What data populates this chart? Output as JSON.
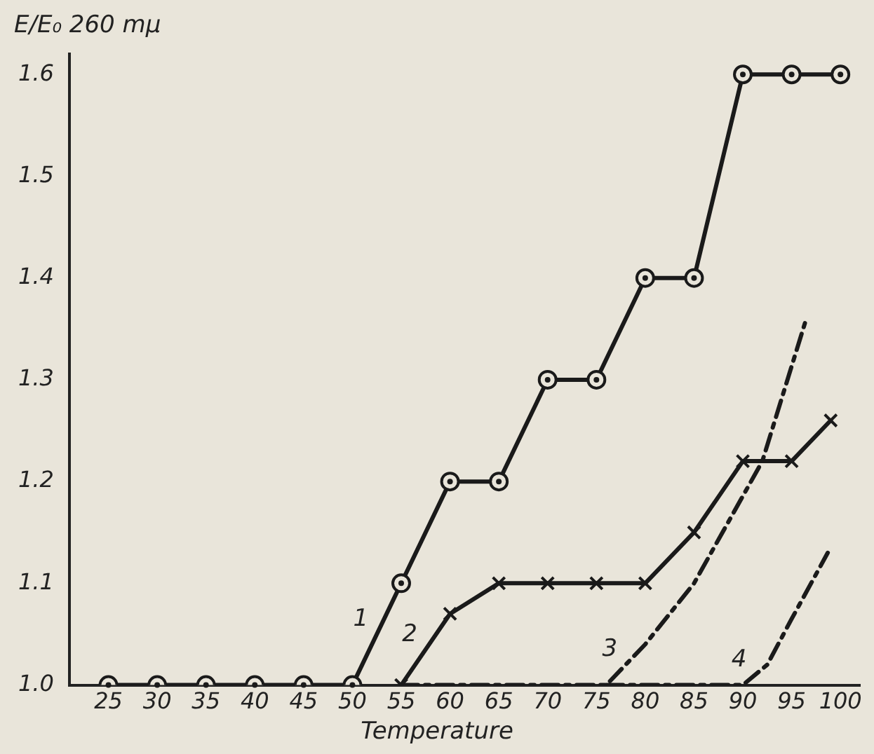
{
  "chart_data": {
    "type": "line",
    "xlabel": "Temperature",
    "ylabel": "E/E₀ 260 mμ",
    "xlim": [
      21,
      102
    ],
    "ylim": [
      1.0,
      1.62
    ],
    "xticks": [
      25,
      30,
      35,
      40,
      45,
      50,
      55,
      60,
      65,
      70,
      75,
      80,
      85,
      90,
      95,
      100
    ],
    "yticks": [
      {
        "value": 1.0,
        "label": "1.0"
      },
      1.1,
      1.2,
      1.3,
      1.4,
      1.5,
      1.6
    ],
    "grid": false,
    "legend": false,
    "series": [
      {
        "name": "1",
        "color": "#1a1a1a",
        "marker": "circle",
        "line_style": "solid",
        "x": [
          25,
          30,
          35,
          40,
          45,
          50,
          55,
          60,
          65,
          70,
          75,
          80,
          85,
          90,
          95,
          100
        ],
        "values": [
          1.0,
          1.0,
          1.0,
          1.0,
          1.0,
          1.0,
          1.1,
          1.2,
          1.2,
          1.3,
          1.3,
          1.4,
          1.4,
          1.6,
          1.6,
          1.6
        ]
      },
      {
        "name": "2",
        "color": "#1a1a1a",
        "marker": "cross",
        "line_style": "solid",
        "x": [
          55,
          60,
          65,
          70,
          75,
          80,
          85,
          90,
          95,
          99
        ],
        "values": [
          1.0,
          1.07,
          1.1,
          1.1,
          1.1,
          1.1,
          1.15,
          1.22,
          1.22,
          1.26
        ]
      },
      {
        "name": "3",
        "color": "#1a1a1a",
        "marker": "none",
        "line_style": "dashed",
        "x": [
          55,
          76,
          80,
          85,
          92,
          96.5
        ],
        "values": [
          1.0,
          1.0,
          1.04,
          1.1,
          1.22,
          1.36
        ]
      },
      {
        "name": "4",
        "color": "#1a1a1a",
        "marker": "none",
        "line_style": "dashed",
        "x": [
          76,
          90,
          92.5,
          95,
          98.7
        ],
        "values": [
          1.0,
          1.0,
          1.02,
          1.065,
          1.13
        ]
      }
    ]
  }
}
